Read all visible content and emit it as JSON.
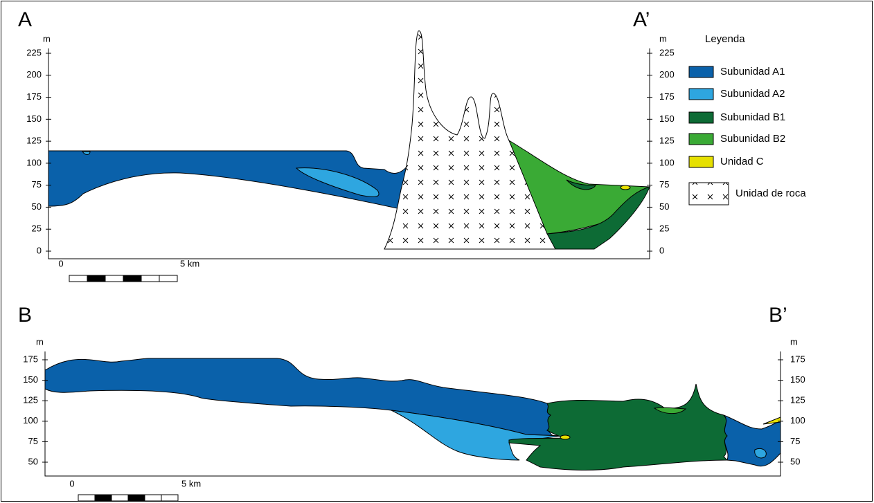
{
  "section_a": {
    "start_label": "A",
    "end_label": "A’",
    "unit_left": "m",
    "unit_right": "m",
    "ticks": [
      0,
      25,
      50,
      75,
      100,
      125,
      150,
      175,
      200,
      225
    ],
    "scale": {
      "zero": "0",
      "distance": "5 km"
    }
  },
  "legend": {
    "title": "Leyenda",
    "items": [
      "Subunidad A1",
      "Subunidad A2",
      "Subunidad B1",
      "Subunidad B2",
      "Unidad C",
      "Unidad de roca"
    ]
  },
  "section_b": {
    "start_label": "B",
    "end_label": "B’",
    "unit_left": "m",
    "unit_right": "m",
    "ticks": [
      50,
      75,
      100,
      125,
      150,
      175
    ],
    "scale": {
      "zero": "0",
      "distance": "5 km"
    }
  }
}
